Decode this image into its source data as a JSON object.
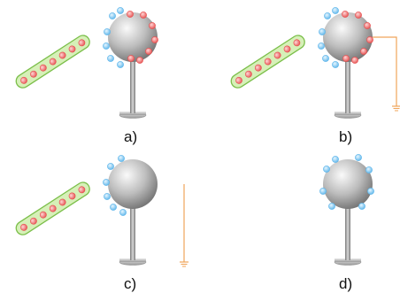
{
  "panels": [
    {
      "id": "a",
      "label": "a)",
      "rod": true,
      "sphere_positive": true,
      "sphere_negative": true,
      "ground": false,
      "ground_connected": false
    },
    {
      "id": "b",
      "label": "b)",
      "rod": true,
      "sphere_positive": true,
      "sphere_negative": true,
      "ground": true,
      "ground_connected": true
    },
    {
      "id": "c",
      "label": "c)",
      "rod": true,
      "sphere_positive": false,
      "sphere_negative": true,
      "ground": true,
      "ground_connected": false
    },
    {
      "id": "d",
      "label": "d)",
      "rod": false,
      "sphere_positive": false,
      "sphere_negative": true,
      "ground": false,
      "ground_connected": false
    }
  ],
  "colors": {
    "rod_fill": "#d6f0b8",
    "rod_stroke": "#7bbf4a",
    "positive_charge": "#e64d4d",
    "negative_charge": "#5ab4ea",
    "ground_wire": "#f0a55a",
    "sphere_light": "#fafafa",
    "sphere_dark": "#777777",
    "stand": "#999999"
  },
  "icons": {
    "positive": "plus-charge-icon",
    "negative": "negative-charge-icon",
    "ground": "ground-symbol-icon"
  }
}
